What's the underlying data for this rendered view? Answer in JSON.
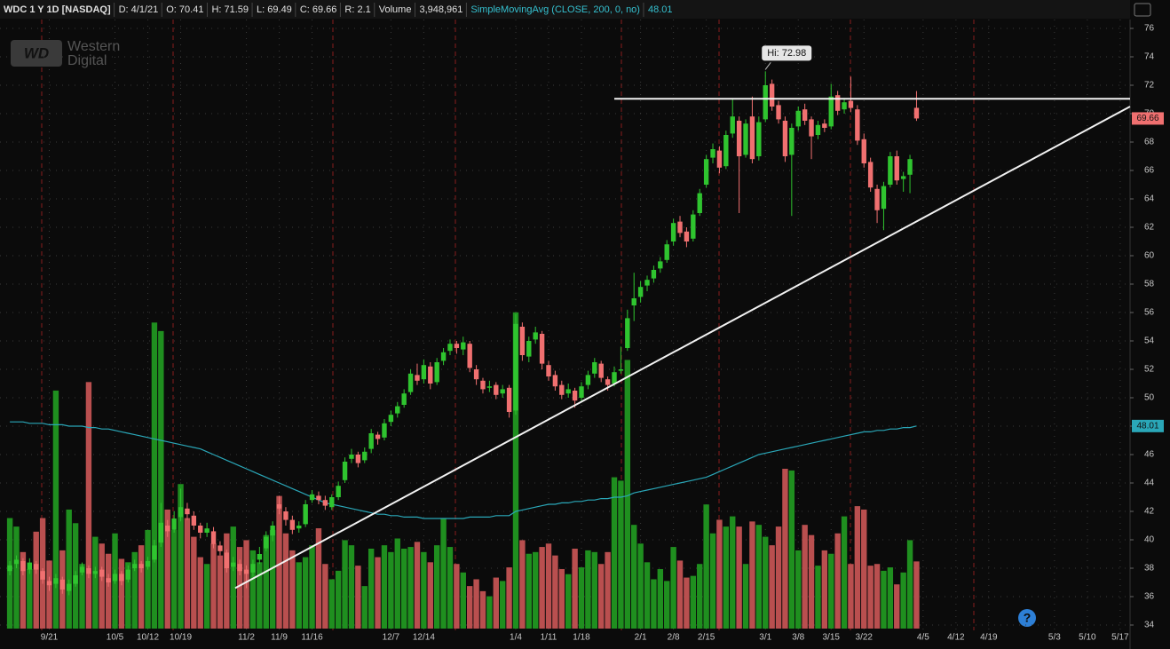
{
  "chart_data": {
    "type": "candlestick",
    "header": {
      "symbol": "WDC 1 Y 1D [NASDAQ]",
      "date": "D: 4/1/21",
      "open": "O: 70.41",
      "high": "H: 71.59",
      "low": "L: 69.49",
      "close": "C: 69.66",
      "range": "R: 2.1",
      "volume_label": "Volume",
      "volume": "3,948,961",
      "study": "SimpleMovingAvg (CLOSE, 200, 0, no)"
    },
    "logo": {
      "mark": "WD",
      "line1": "Western",
      "line2": "Digital"
    },
    "ylim": [
      33.5,
      76.5
    ],
    "yticks": [
      34,
      36,
      38,
      40,
      42,
      44,
      46,
      48,
      50,
      52,
      54,
      56,
      58,
      60,
      62,
      64,
      66,
      68,
      70,
      72,
      74,
      76
    ],
    "xlim": [
      -1.5,
      170.5
    ],
    "xticks": [
      {
        "value": 6,
        "label": "9/21"
      },
      {
        "value": 16,
        "label": "10/5"
      },
      {
        "value": 21,
        "label": "10/12"
      },
      {
        "value": 26,
        "label": "10/19"
      },
      {
        "value": 36,
        "label": "11/2"
      },
      {
        "value": 41,
        "label": "11/9"
      },
      {
        "value": 46,
        "label": "11/16"
      },
      {
        "value": 58,
        "label": "12/7"
      },
      {
        "value": 63,
        "label": "12/14"
      },
      {
        "value": 77,
        "label": "1/4"
      },
      {
        "value": 82,
        "label": "1/11"
      },
      {
        "value": 87,
        "label": "1/18"
      },
      {
        "value": 96,
        "label": "2/1"
      },
      {
        "value": 101,
        "label": "2/8"
      },
      {
        "value": 106,
        "label": "2/15"
      },
      {
        "value": 115,
        "label": "3/1"
      },
      {
        "value": 120,
        "label": "3/8"
      },
      {
        "value": 125,
        "label": "3/15"
      },
      {
        "value": 130,
        "label": "3/22"
      },
      {
        "value": 139,
        "label": "4/5"
      },
      {
        "value": 144,
        "label": "4/12"
      },
      {
        "value": 149,
        "label": "4/19"
      },
      {
        "value": 159,
        "label": "5/3"
      },
      {
        "value": 164,
        "label": "5/10"
      },
      {
        "value": 169,
        "label": "5/17"
      }
    ],
    "up_color": "#2fc42f",
    "down_color": "#f07070",
    "vol_up_color": "#1f8f1f",
    "vol_down_color": "#b94f4f",
    "sma_color": "#2aa7b8",
    "volume_lim": [
      0,
      20
    ],
    "candles": [
      [
        37.8,
        38.5,
        37.5,
        38.2
      ],
      [
        38.3,
        38.9,
        38.0,
        38.6
      ],
      [
        38.5,
        38.7,
        37.5,
        37.8
      ],
      [
        37.9,
        38.7,
        37.6,
        38.4
      ],
      [
        38.3,
        38.5,
        37.6,
        37.9
      ],
      [
        37.8,
        38.0,
        36.9,
        37.2
      ],
      [
        37.1,
        37.4,
        36.4,
        36.8
      ],
      [
        36.9,
        37.6,
        36.6,
        37.3
      ],
      [
        37.2,
        37.4,
        36.2,
        36.5
      ],
      [
        36.4,
        37.2,
        36.1,
        36.9
      ],
      [
        36.9,
        37.8,
        36.7,
        37.5
      ],
      [
        37.7,
        38.4,
        37.5,
        38.1
      ],
      [
        38.0,
        38.2,
        37.3,
        37.6
      ],
      [
        37.6,
        38.1,
        37.3,
        37.8
      ],
      [
        37.9,
        38.1,
        37.1,
        37.4
      ],
      [
        37.3,
        37.6,
        36.7,
        37.0
      ],
      [
        37.1,
        37.9,
        36.9,
        37.6
      ],
      [
        37.6,
        37.8,
        36.8,
        37.1
      ],
      [
        37.2,
        38.2,
        37.0,
        37.9
      ],
      [
        38.0,
        38.6,
        37.8,
        38.3
      ],
      [
        38.3,
        38.5,
        37.7,
        38.0
      ],
      [
        38.1,
        38.8,
        37.9,
        38.5
      ],
      [
        38.6,
        40.0,
        38.4,
        39.6
      ],
      [
        39.8,
        42.6,
        39.5,
        41.2
      ],
      [
        41.0,
        41.4,
        40.2,
        40.6
      ],
      [
        40.7,
        42.0,
        40.5,
        41.5
      ],
      [
        41.6,
        43.6,
        41.3,
        42.3
      ],
      [
        42.2,
        42.6,
        41.4,
        41.8
      ],
      [
        41.7,
        42.0,
        40.7,
        41.0
      ],
      [
        41.0,
        41.2,
        40.1,
        40.5
      ],
      [
        40.5,
        41.2,
        40.2,
        40.8
      ],
      [
        40.6,
        40.9,
        39.4,
        39.7
      ],
      [
        39.6,
        39.9,
        38.9,
        39.2
      ],
      [
        39.1,
        39.3,
        37.7,
        38.0
      ],
      [
        38.1,
        38.8,
        37.8,
        38.4
      ],
      [
        38.3,
        38.6,
        37.5,
        37.8
      ],
      [
        37.9,
        38.2,
        36.6,
        37.6
      ],
      [
        37.7,
        38.6,
        37.4,
        38.3
      ],
      [
        38.6,
        39.5,
        38.3,
        39.0
      ],
      [
        39.4,
        40.6,
        39.2,
        40.2
      ],
      [
        40.3,
        41.3,
        39.9,
        41.0
      ],
      [
        42.5,
        43.1,
        41.8,
        42.2
      ],
      [
        42.0,
        42.3,
        41.0,
        41.4
      ],
      [
        41.4,
        41.7,
        40.4,
        40.7
      ],
      [
        40.8,
        41.3,
        40.5,
        41.0
      ],
      [
        41.1,
        42.8,
        40.9,
        42.5
      ],
      [
        42.8,
        43.5,
        42.6,
        43.2
      ],
      [
        43.1,
        43.4,
        42.5,
        42.8
      ],
      [
        42.8,
        43.1,
        42.1,
        42.4
      ],
      [
        42.3,
        43.2,
        42.1,
        43.0
      ],
      [
        43.0,
        44.1,
        42.8,
        43.8
      ],
      [
        44.2,
        45.8,
        44.0,
        45.5
      ],
      [
        45.7,
        46.4,
        45.4,
        46.0
      ],
      [
        46.0,
        46.2,
        45.1,
        45.4
      ],
      [
        45.6,
        46.5,
        45.4,
        46.2
      ],
      [
        46.4,
        47.8,
        46.1,
        47.5
      ],
      [
        47.4,
        47.6,
        46.7,
        47.1
      ],
      [
        47.2,
        48.5,
        47.0,
        48.2
      ],
      [
        48.3,
        49.1,
        48.0,
        48.8
      ],
      [
        48.9,
        49.7,
        48.6,
        49.4
      ],
      [
        49.5,
        50.6,
        49.3,
        50.3
      ],
      [
        50.4,
        52.0,
        50.2,
        51.7
      ],
      [
        51.6,
        52.4,
        50.9,
        51.2
      ],
      [
        51.3,
        52.7,
        51.0,
        52.3
      ],
      [
        52.2,
        52.5,
        50.6,
        51.0
      ],
      [
        51.1,
        52.8,
        50.9,
        52.5
      ],
      [
        52.6,
        53.5,
        52.3,
        53.2
      ],
      [
        53.3,
        54.1,
        53.0,
        53.8
      ],
      [
        53.8,
        54.0,
        53.1,
        53.5
      ],
      [
        53.4,
        54.3,
        53.0,
        53.9
      ],
      [
        53.8,
        54.0,
        51.8,
        52.1
      ],
      [
        52.0,
        52.3,
        50.9,
        51.3
      ],
      [
        51.2,
        51.4,
        50.3,
        50.6
      ],
      [
        50.7,
        51.2,
        50.4,
        50.8
      ],
      [
        50.9,
        51.1,
        49.9,
        50.2
      ],
      [
        50.3,
        50.9,
        50.0,
        50.6
      ],
      [
        50.7,
        50.9,
        48.6,
        49.0
      ],
      [
        49.1,
        55.9,
        48.8,
        55.2
      ],
      [
        55.0,
        55.3,
        52.6,
        53.0
      ],
      [
        52.9,
        54.3,
        52.5,
        54.0
      ],
      [
        54.1,
        55.0,
        53.8,
        54.6
      ],
      [
        54.5,
        54.7,
        52.0,
        52.4
      ],
      [
        52.3,
        52.6,
        51.2,
        51.5
      ],
      [
        51.6,
        51.9,
        50.5,
        50.8
      ],
      [
        50.9,
        51.2,
        49.9,
        50.2
      ],
      [
        50.3,
        51.0,
        50.0,
        50.6
      ],
      [
        50.5,
        50.7,
        49.3,
        49.8
      ],
      [
        50.0,
        51.1,
        49.7,
        50.8
      ],
      [
        50.9,
        51.9,
        50.6,
        51.6
      ],
      [
        51.7,
        52.8,
        51.4,
        52.5
      ],
      [
        52.4,
        52.6,
        51.1,
        51.4
      ],
      [
        51.3,
        51.5,
        50.5,
        50.9
      ],
      [
        51.0,
        52.2,
        50.8,
        51.8
      ],
      [
        51.9,
        53.6,
        51.7,
        52.0
      ],
      [
        53.5,
        56.2,
        53.3,
        55.6
      ],
      [
        56.5,
        58.8,
        55.4,
        57.0
      ],
      [
        57.1,
        58.2,
        56.7,
        57.8
      ],
      [
        57.9,
        58.6,
        57.5,
        58.3
      ],
      [
        58.4,
        59.3,
        58.1,
        59.0
      ],
      [
        59.1,
        59.9,
        58.8,
        59.6
      ],
      [
        59.7,
        61.1,
        59.5,
        60.8
      ],
      [
        61.0,
        62.6,
        60.7,
        62.3
      ],
      [
        62.4,
        62.8,
        61.3,
        61.6
      ],
      [
        61.7,
        62.0,
        60.6,
        61.0
      ],
      [
        61.2,
        63.2,
        61.0,
        62.9
      ],
      [
        63.0,
        64.7,
        62.8,
        64.4
      ],
      [
        65.0,
        67.1,
        64.8,
        66.8
      ],
      [
        66.9,
        67.9,
        66.5,
        67.5
      ],
      [
        67.4,
        67.7,
        65.8,
        66.2
      ],
      [
        66.3,
        68.8,
        66.1,
        68.5
      ],
      [
        68.6,
        71.0,
        68.3,
        69.8
      ],
      [
        69.5,
        69.8,
        63.0,
        67.0
      ],
      [
        67.1,
        69.6,
        66.9,
        69.3
      ],
      [
        69.8,
        71.2,
        66.5,
        66.8
      ],
      [
        67.0,
        69.8,
        66.7,
        69.4
      ],
      [
        69.6,
        72.98,
        69.4,
        72.0
      ],
      [
        72.1,
        72.4,
        70.2,
        70.5
      ],
      [
        70.6,
        70.9,
        69.3,
        69.6
      ],
      [
        69.5,
        69.8,
        66.6,
        67.0
      ],
      [
        67.1,
        69.3,
        62.8,
        69.0
      ],
      [
        69.1,
        70.5,
        68.8,
        70.2
      ],
      [
        70.3,
        70.7,
        69.2,
        69.5
      ],
      [
        69.6,
        69.8,
        66.8,
        68.4
      ],
      [
        68.5,
        69.5,
        68.2,
        69.2
      ],
      [
        69.3,
        69.6,
        68.7,
        69.0
      ],
      [
        69.1,
        72.1,
        68.9,
        71.2
      ],
      [
        71.3,
        71.6,
        69.9,
        70.2
      ],
      [
        70.3,
        71.1,
        70.0,
        70.8
      ],
      [
        70.9,
        72.6,
        70.1,
        70.4
      ],
      [
        70.3,
        70.6,
        67.8,
        68.1
      ],
      [
        68.2,
        68.6,
        66.2,
        66.5
      ],
      [
        66.6,
        66.9,
        64.5,
        64.8
      ],
      [
        64.7,
        65.0,
        62.3,
        63.2
      ],
      [
        63.3,
        65.2,
        61.8,
        64.9
      ],
      [
        65.0,
        67.3,
        64.8,
        67.0
      ],
      [
        67.0,
        67.4,
        65.0,
        65.3
      ],
      [
        65.4,
        65.9,
        64.5,
        65.6
      ],
      [
        65.7,
        67.1,
        64.4,
        66.8
      ],
      [
        70.41,
        71.59,
        69.49,
        69.66
      ]
    ],
    "volumes": [
      6.5,
      6.0,
      4.5,
      3.5,
      5.7,
      6.5,
      4.0,
      14.0,
      4.6,
      7.0,
      6.2,
      3.8,
      14.5,
      5.4,
      5.0,
      4.4,
      5.6,
      4.1,
      3.9,
      4.5,
      4.9,
      5.8,
      18.0,
      17.5,
      7.0,
      5.8,
      8.5,
      6.5,
      5.4,
      4.2,
      3.8,
      5.0,
      4.3,
      5.6,
      6.0,
      4.8,
      5.2,
      4.6,
      3.9,
      5.5,
      5.8,
      7.8,
      5.6,
      4.6,
      3.9,
      4.2,
      4.9,
      5.9,
      3.8,
      2.9,
      3.4,
      5.2,
      4.9,
      3.7,
      2.5,
      4.7,
      4.2,
      4.9,
      4.5,
      5.3,
      4.7,
      4.8,
      5.1,
      4.5,
      3.9,
      4.9,
      6.5,
      4.8,
      3.8,
      3.3,
      2.5,
      2.9,
      2.2,
      1.9,
      3.0,
      2.8,
      3.6,
      18.6,
      5.2,
      4.4,
      4.5,
      4.8,
      5.0,
      4.3,
      3.5,
      3.2,
      4.7,
      3.6,
      4.6,
      4.5,
      3.8,
      4.5,
      8.9,
      8.7,
      15.8,
      6.1,
      5.0,
      3.9,
      2.9,
      3.5,
      2.8,
      4.8,
      4.0,
      3.0,
      3.1,
      3.8,
      7.3,
      5.6,
      6.4,
      6.0,
      6.6,
      6.0,
      3.8,
      6.3,
      6.1,
      5.4,
      4.9,
      6.0,
      9.4,
      9.3,
      4.6,
      6.1,
      5.5,
      3.7,
      4.6,
      4.4,
      5.6,
      6.6,
      3.8,
      7.2,
      7.0,
      3.7,
      3.8,
      3.4,
      3.6,
      2.6,
      3.3,
      5.2,
      3.948961
    ],
    "sma": [
      48.3,
      48.3,
      48.3,
      48.2,
      48.2,
      48.2,
      48.1,
      48.1,
      48.1,
      48.0,
      48.0,
      48.0,
      47.9,
      47.9,
      47.8,
      47.8,
      47.7,
      47.6,
      47.5,
      47.4,
      47.3,
      47.2,
      47.1,
      47.0,
      46.9,
      46.8,
      46.7,
      46.6,
      46.5,
      46.4,
      46.2,
      46.0,
      45.8,
      45.6,
      45.4,
      45.2,
      45.0,
      44.8,
      44.6,
      44.4,
      44.2,
      44.0,
      43.8,
      43.6,
      43.4,
      43.2,
      43.0,
      42.8,
      42.6,
      42.5,
      42.4,
      42.3,
      42.2,
      42.1,
      42.0,
      41.9,
      41.8,
      41.8,
      41.7,
      41.7,
      41.6,
      41.6,
      41.6,
      41.5,
      41.5,
      41.5,
      41.5,
      41.5,
      41.5,
      41.5,
      41.6,
      41.6,
      41.6,
      41.6,
      41.7,
      41.7,
      41.7,
      42.0,
      42.1,
      42.2,
      42.3,
      42.4,
      42.5,
      42.5,
      42.6,
      42.6,
      42.7,
      42.7,
      42.8,
      42.8,
      42.9,
      42.9,
      43.0,
      43.0,
      43.1,
      43.3,
      43.4,
      43.5,
      43.6,
      43.7,
      43.8,
      43.9,
      44.0,
      44.1,
      44.2,
      44.3,
      44.4,
      44.6,
      44.8,
      45.0,
      45.2,
      45.4,
      45.6,
      45.8,
      46.0,
      46.1,
      46.2,
      46.3,
      46.4,
      46.5,
      46.6,
      46.7,
      46.8,
      46.9,
      47.0,
      47.1,
      47.2,
      47.3,
      47.4,
      47.5,
      47.6,
      47.6,
      47.7,
      47.7,
      47.8,
      47.8,
      47.9,
      47.9,
      48.01
    ],
    "lines": [
      {
        "x": [
          92,
          170.5
        ],
        "y": [
          71.05,
          71.05
        ]
      },
      {
        "x": [
          34.3,
          170.5
        ],
        "y": [
          36.6,
          70.5
        ]
      }
    ],
    "hi": {
      "index": 115,
      "label": "Hi: 72.98"
    }
  }
}
